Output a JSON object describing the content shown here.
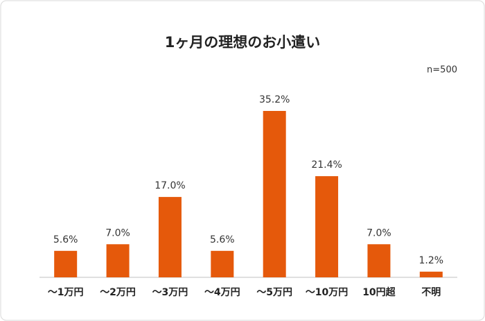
{
  "chart_data": {
    "type": "bar",
    "title": "1ヶ月の理想のお小遣い",
    "annotation": "n=500",
    "categories": [
      "～1万円",
      "～2万円",
      "～3万円",
      "～4万円",
      "～5万円",
      "～10万円",
      "10円超",
      "不明"
    ],
    "values": [
      5.6,
      7.0,
      17.0,
      5.6,
      35.2,
      21.4,
      7.0,
      1.2
    ],
    "value_labels": [
      "5.6%",
      "7.0%",
      "17.0%",
      "5.6%",
      "35.2%",
      "21.4%",
      "7.0%",
      "1.2%"
    ],
    "color": "#e5590b"
  }
}
